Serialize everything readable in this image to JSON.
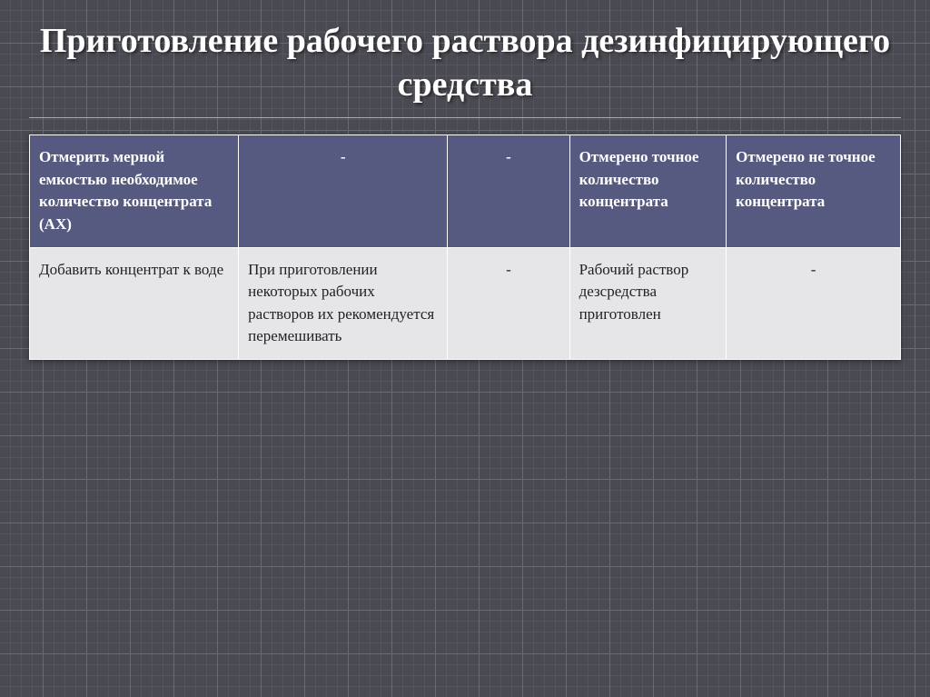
{
  "slide": {
    "title": "Приготовление рабочего раствора дезинфицирующего  средства",
    "background_color": "#4a4a52",
    "grid_major_color": "#6a6a72",
    "grid_minor_color": "#555560",
    "title_color": "#ffffff",
    "title_fontsize": 38,
    "underline_color": "#a8a8b2"
  },
  "table": {
    "type": "table",
    "column_widths_pct": [
      24,
      24,
      14,
      18,
      20
    ],
    "header_bg": "#565a80",
    "header_text_color": "#ffffff",
    "body_bg": "#e6e6e8",
    "body_text_color": "#222224",
    "border_color": "#ffffff",
    "cell_fontsize": 17,
    "header_font_weight": "bold",
    "columns_align": [
      "left",
      "center",
      "center",
      "left",
      "left"
    ],
    "rows": [
      {
        "is_header": true,
        "cells": [
          "Отмерить мерной емкостью необходимое количество концентрата (АХ)",
          "-",
          "-",
          "Отмерено точное количество концентрата",
          "Отмерено не точное количество концентрата"
        ]
      },
      {
        "is_header": false,
        "cells": [
          "Добавить концентрат к воде",
          "При приготовлении некоторых рабочих растворов их рекомендуется перемешивать",
          "-",
          "Рабочий раствор дезсредства приготовлен",
          "-"
        ]
      }
    ]
  }
}
